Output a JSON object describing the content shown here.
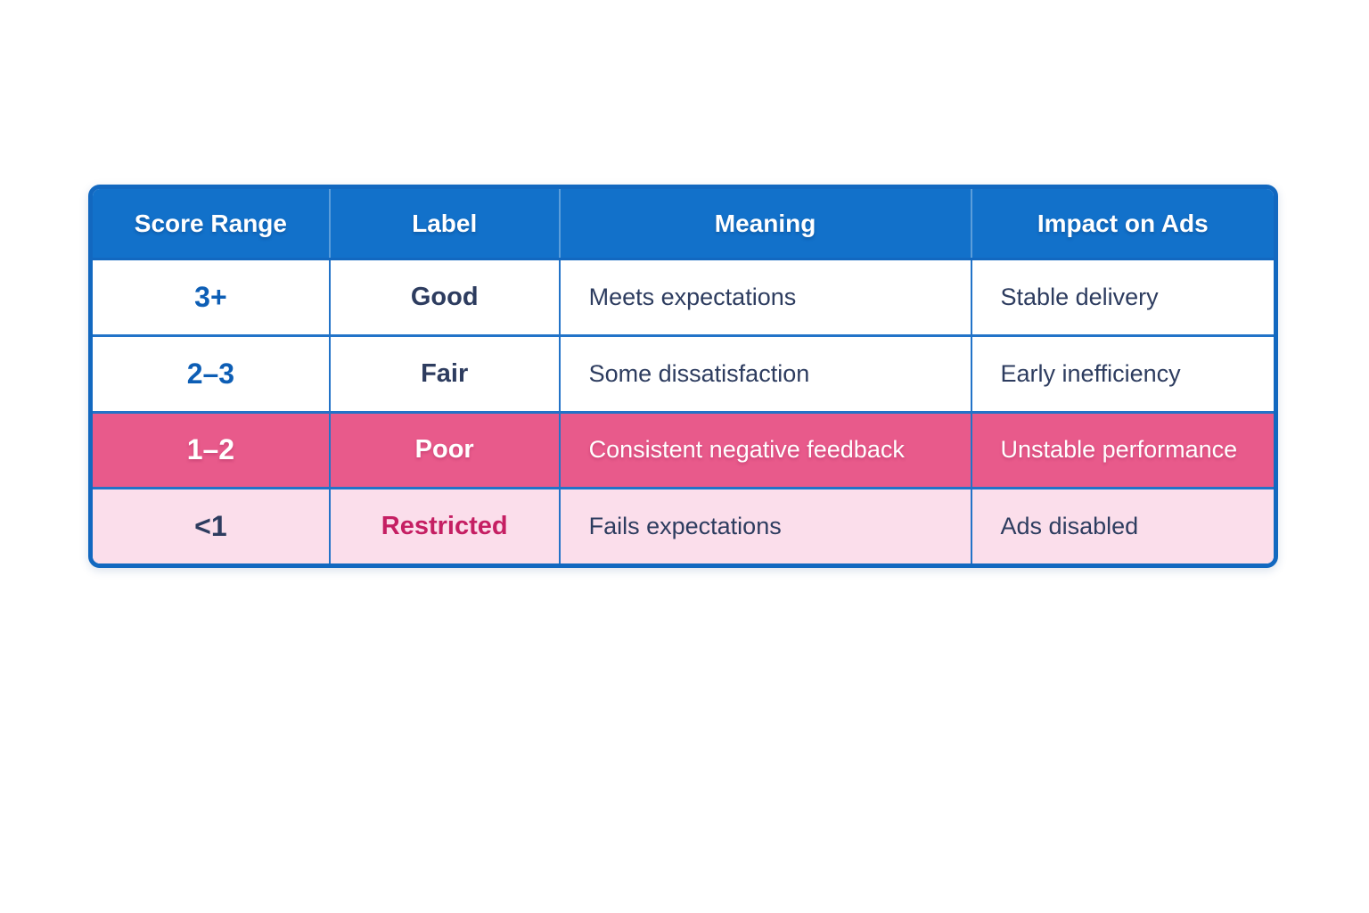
{
  "chart_data": {
    "type": "table",
    "columns": [
      "Score Range",
      "Label",
      "Meaning",
      "Impact on Ads"
    ],
    "rows": [
      [
        "3+",
        "Good",
        "Meets expectations",
        "Stable delivery"
      ],
      [
        "2–3",
        "Fair",
        "Some dissatisfaction",
        "Early inefficiency"
      ],
      [
        "1–2",
        "Poor",
        "Consistent negative feedback",
        "Unstable performance"
      ],
      [
        "<1",
        "Restricted",
        "Fails expectations",
        "Ads disabled"
      ]
    ],
    "row_variants": [
      "default",
      "default",
      "highlight",
      "restricted"
    ],
    "layout": {
      "header_position": "top",
      "grid": "ruled",
      "corner_style": "rounded"
    }
  },
  "colors": {
    "header_bg": "#1271ca",
    "header_text": "#ffffff",
    "header_divider": "#5b9dda",
    "border": "#1268c0",
    "grid_line": "#2273c8",
    "highlight_row_bg": "#e85a8b",
    "restricted_row_bg": "#fbdeeb",
    "score_blue": "#0d5eb5",
    "navy_text": "#2d3c5f",
    "restricted_text": "#c51f63",
    "page_bg": "#ffffff"
  }
}
